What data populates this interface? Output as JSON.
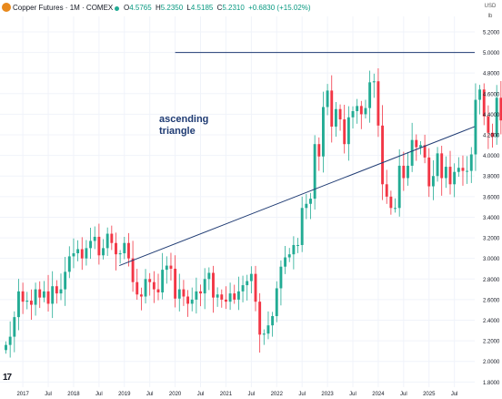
{
  "header": {
    "symbol_title": "Copper Futures · 1M · COMEX",
    "ohlc": [
      {
        "k": "O",
        "v": "4.5765"
      },
      {
        "k": "H",
        "v": "5.2350"
      },
      {
        "k": "L",
        "v": "4.5185"
      },
      {
        "k": "C",
        "v": "5.2310"
      },
      {
        "k": "",
        "v": "+0.6830 (+15.02%)"
      }
    ],
    "currency": "USD",
    "unit": "lb"
  },
  "colors": {
    "up": "#22ab94",
    "down": "#f23645",
    "trendline": "#1f3b73",
    "annotation": "#1f3b73",
    "axis_text": "#131722"
  },
  "chart_data": {
    "type": "candlestick",
    "title": "",
    "annotation": [
      "ascending",
      "triangle"
    ],
    "y_ticks": [
      "1.8000",
      "2.0000",
      "2.2000",
      "2.4000",
      "2.6000",
      "2.8000",
      "3.0000",
      "3.2000",
      "3.4000",
      "3.6000",
      "3.8000",
      "4.0000",
      "4.2000",
      "4.4000",
      "4.6000",
      "4.8000",
      "5.0000",
      "5.2000"
    ],
    "x_ticks": [
      {
        "label": "2017",
        "t": 2017.0
      },
      {
        "label": "Jul",
        "t": 2017.5
      },
      {
        "label": "2018",
        "t": 2018.0
      },
      {
        "label": "Jul",
        "t": 2018.5
      },
      {
        "label": "2019",
        "t": 2019.0
      },
      {
        "label": "Jul",
        "t": 2019.5
      },
      {
        "label": "2020",
        "t": 2020.0
      },
      {
        "label": "Jul",
        "t": 2020.5
      },
      {
        "label": "2021",
        "t": 2021.0
      },
      {
        "label": "Jul",
        "t": 2021.5
      },
      {
        "label": "2022",
        "t": 2022.0
      },
      {
        "label": "Jul",
        "t": 2022.5
      },
      {
        "label": "2023",
        "t": 2023.0
      },
      {
        "label": "Jul",
        "t": 2023.5
      },
      {
        "label": "2024",
        "t": 2024.0
      },
      {
        "label": "Jul",
        "t": 2024.5
      },
      {
        "label": "2025",
        "t": 2025.0
      },
      {
        "label": "Jul",
        "t": 2025.5
      }
    ],
    "ylim": [
      1.75,
      5.35
    ],
    "xlim": [
      2016.55,
      2025.9
    ],
    "resistance": {
      "y": 5.0,
      "from": 2020.0,
      "to": 2025.9
    },
    "support": {
      "from": [
        2018.9,
        2.93
      ],
      "to": [
        2025.9,
        4.28
      ]
    },
    "closes": [
      2.16,
      2.24,
      2.43,
      2.68,
      2.58,
      2.59,
      2.55,
      2.7,
      2.62,
      2.68,
      2.56,
      2.73,
      2.66,
      2.7,
      2.87,
      3.02,
      3.05,
      3.09,
      3.0,
      3.1,
      3.17,
      3.21,
      3.03,
      3.1,
      3.24,
      3.15,
      3.04,
      3.05,
      3.15,
      3.0,
      2.77,
      2.65,
      2.63,
      2.8,
      2.77,
      2.7,
      2.67,
      2.89,
      2.93,
      2.9,
      2.61,
      2.7,
      2.63,
      2.56,
      2.6,
      2.68,
      2.66,
      2.8,
      2.86,
      2.62,
      2.65,
      2.6,
      2.58,
      2.66,
      2.6,
      2.68,
      2.74,
      2.78,
      2.85,
      2.58,
      2.26,
      2.27,
      2.35,
      2.44,
      2.71,
      2.92,
      3.01,
      3.04,
      3.13,
      3.13,
      3.49,
      3.53,
      3.58,
      4.11,
      3.99,
      4.47,
      4.63,
      4.28,
      4.45,
      4.35,
      4.11,
      4.37,
      4.43,
      4.48,
      4.4,
      4.46,
      4.71,
      4.72,
      4.29,
      3.72,
      3.6,
      3.49,
      3.49,
      3.9,
      3.78,
      3.9,
      4.15,
      4.08,
      4.1,
      3.98,
      3.7,
      3.8,
      4.02,
      3.78,
      3.89,
      3.72,
      3.84,
      3.88,
      3.85,
      3.85,
      4.01,
      4.54,
      4.64,
      4.38,
      4.22,
      4.18,
      4.56,
      4.34,
      4.07,
      4.05,
      4.28,
      4.58,
      5.23
    ]
  }
}
